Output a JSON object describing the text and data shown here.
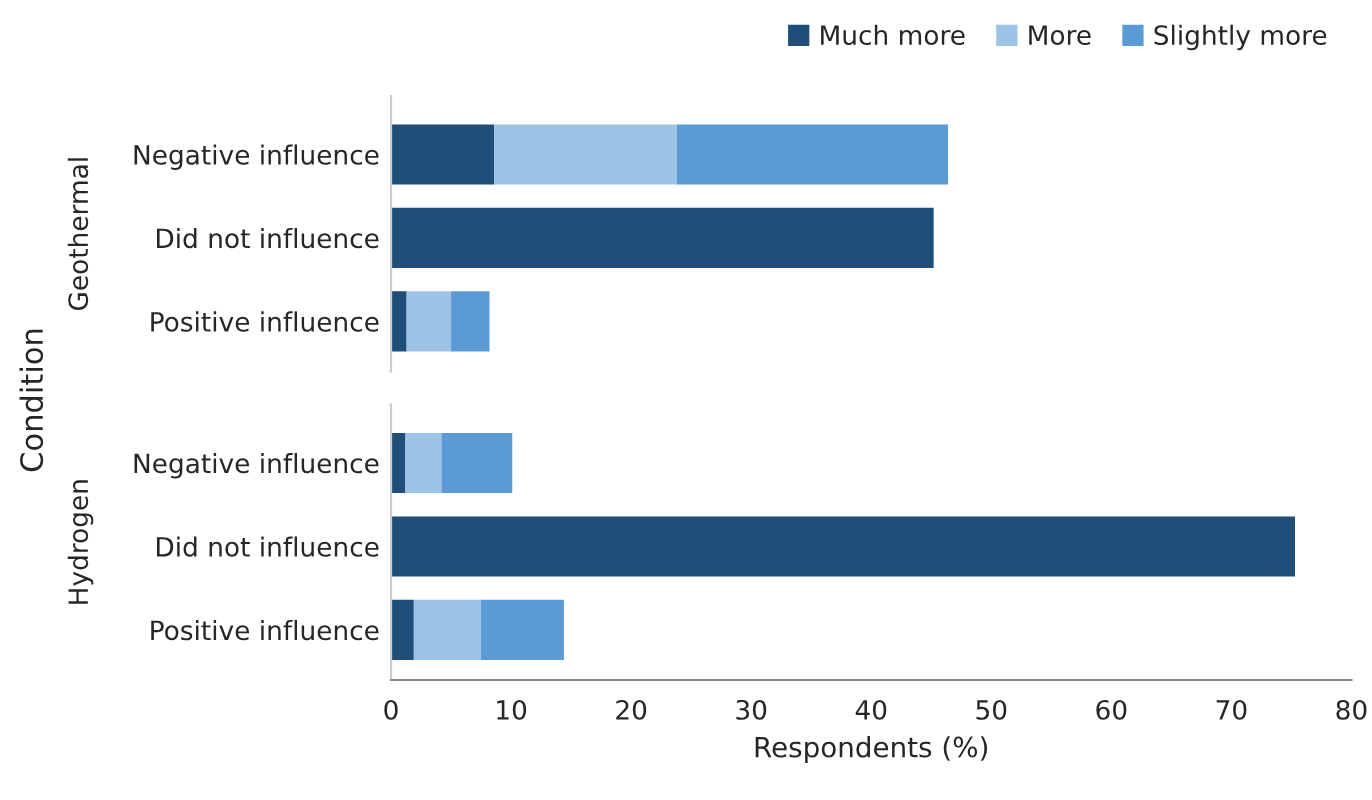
{
  "chart_data": [
    {
      "type": "bar",
      "orientation": "horizontal",
      "stacked": true,
      "ylabel": "Geothermal",
      "annotations": [
        "Condition"
      ],
      "legend": "top right",
      "tick_labels": "y",
      "xlim": [
        0,
        80
      ],
      "xticks": [
        0,
        10,
        20,
        30,
        40,
        50,
        60,
        70,
        80
      ],
      "categories": [
        "Negative influence",
        "Did not influence",
        "Positive influence"
      ],
      "series": [
        {
          "name": "Much more",
          "color": "#1f4e79",
          "values": [
            8.6,
            45.2,
            1.3
          ]
        },
        {
          "name": "More",
          "color": "#9dc3e6",
          "values": [
            15.2,
            0,
            3.7
          ]
        },
        {
          "name": "Slightly more",
          "color": "#5b9bd5",
          "values": [
            22.6,
            0,
            3.2
          ]
        }
      ]
    },
    {
      "type": "bar",
      "orientation": "horizontal",
      "stacked": true,
      "ylabel": "Hydrogen",
      "xlabel": "Respondents (%)",
      "xlim": [
        0,
        80
      ],
      "xticks": [
        0,
        10,
        20,
        30,
        40,
        50,
        60,
        70,
        80
      ],
      "categories": [
        "Negative influence",
        "Did not influence",
        "Positive influence"
      ],
      "series": [
        {
          "color": "#1f4e79",
          "values": [
            1.2,
            75.3,
            1.9
          ]
        },
        {
          "color": "#9dc3e6",
          "values": [
            3.0,
            0,
            5.6
          ]
        },
        {
          "color": "#5b9bd5",
          "values": [
            5.9,
            0,
            6.9
          ]
        }
      ]
    }
  ]
}
